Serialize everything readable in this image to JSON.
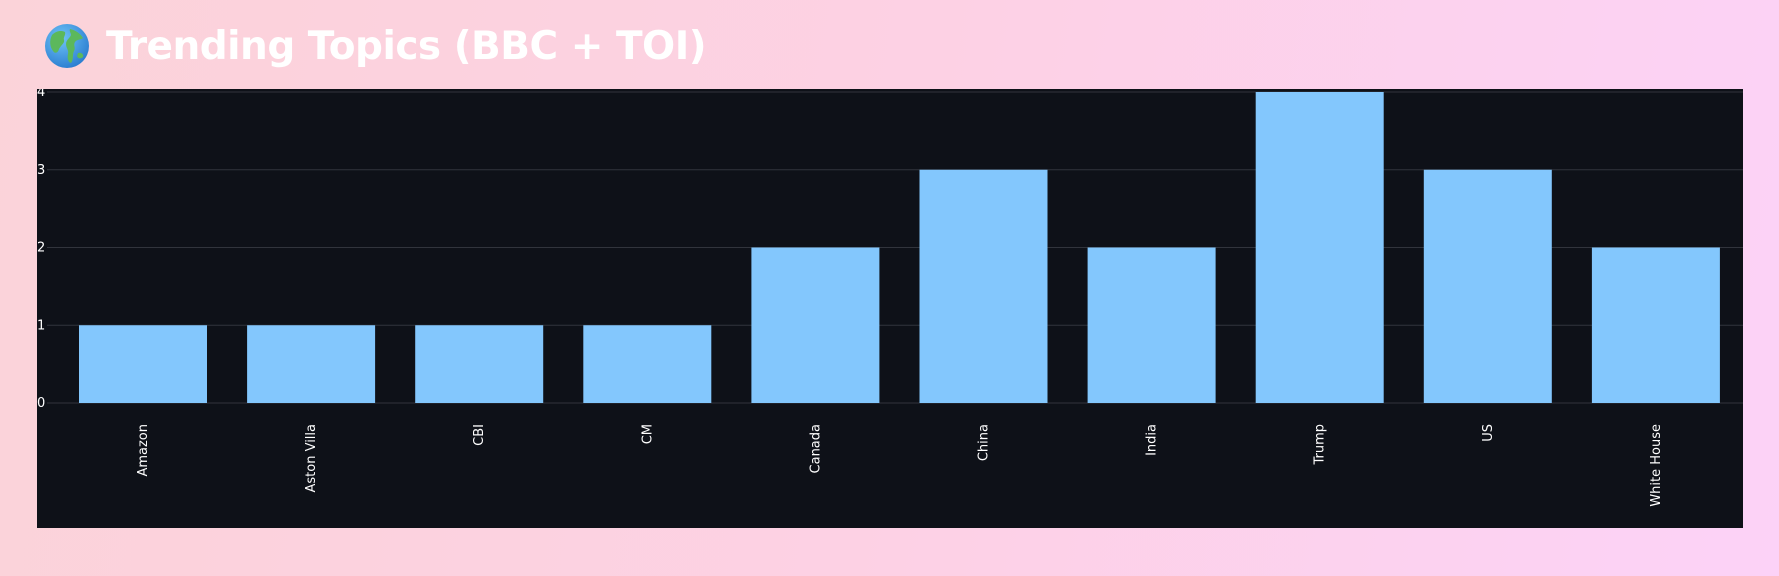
{
  "header": {
    "icon": "globe-icon",
    "title": "Trending Topics (BBC + TOI)"
  },
  "chart_data": {
    "type": "bar",
    "categories": [
      "Amazon",
      "Aston Villa",
      "CBI",
      "CM",
      "Canada",
      "China",
      "India",
      "Trump",
      "US",
      "White House"
    ],
    "values": [
      1,
      1,
      1,
      1,
      2,
      3,
      2,
      4,
      3,
      2
    ],
    "title": "",
    "xlabel": "",
    "ylabel": "",
    "ylim": [
      0,
      4
    ],
    "yticks": [
      0,
      1,
      2,
      3,
      4
    ],
    "grid": true,
    "colors": {
      "bar": "#83c7fd",
      "background": "#0e1118",
      "grid": "#31343c"
    }
  }
}
